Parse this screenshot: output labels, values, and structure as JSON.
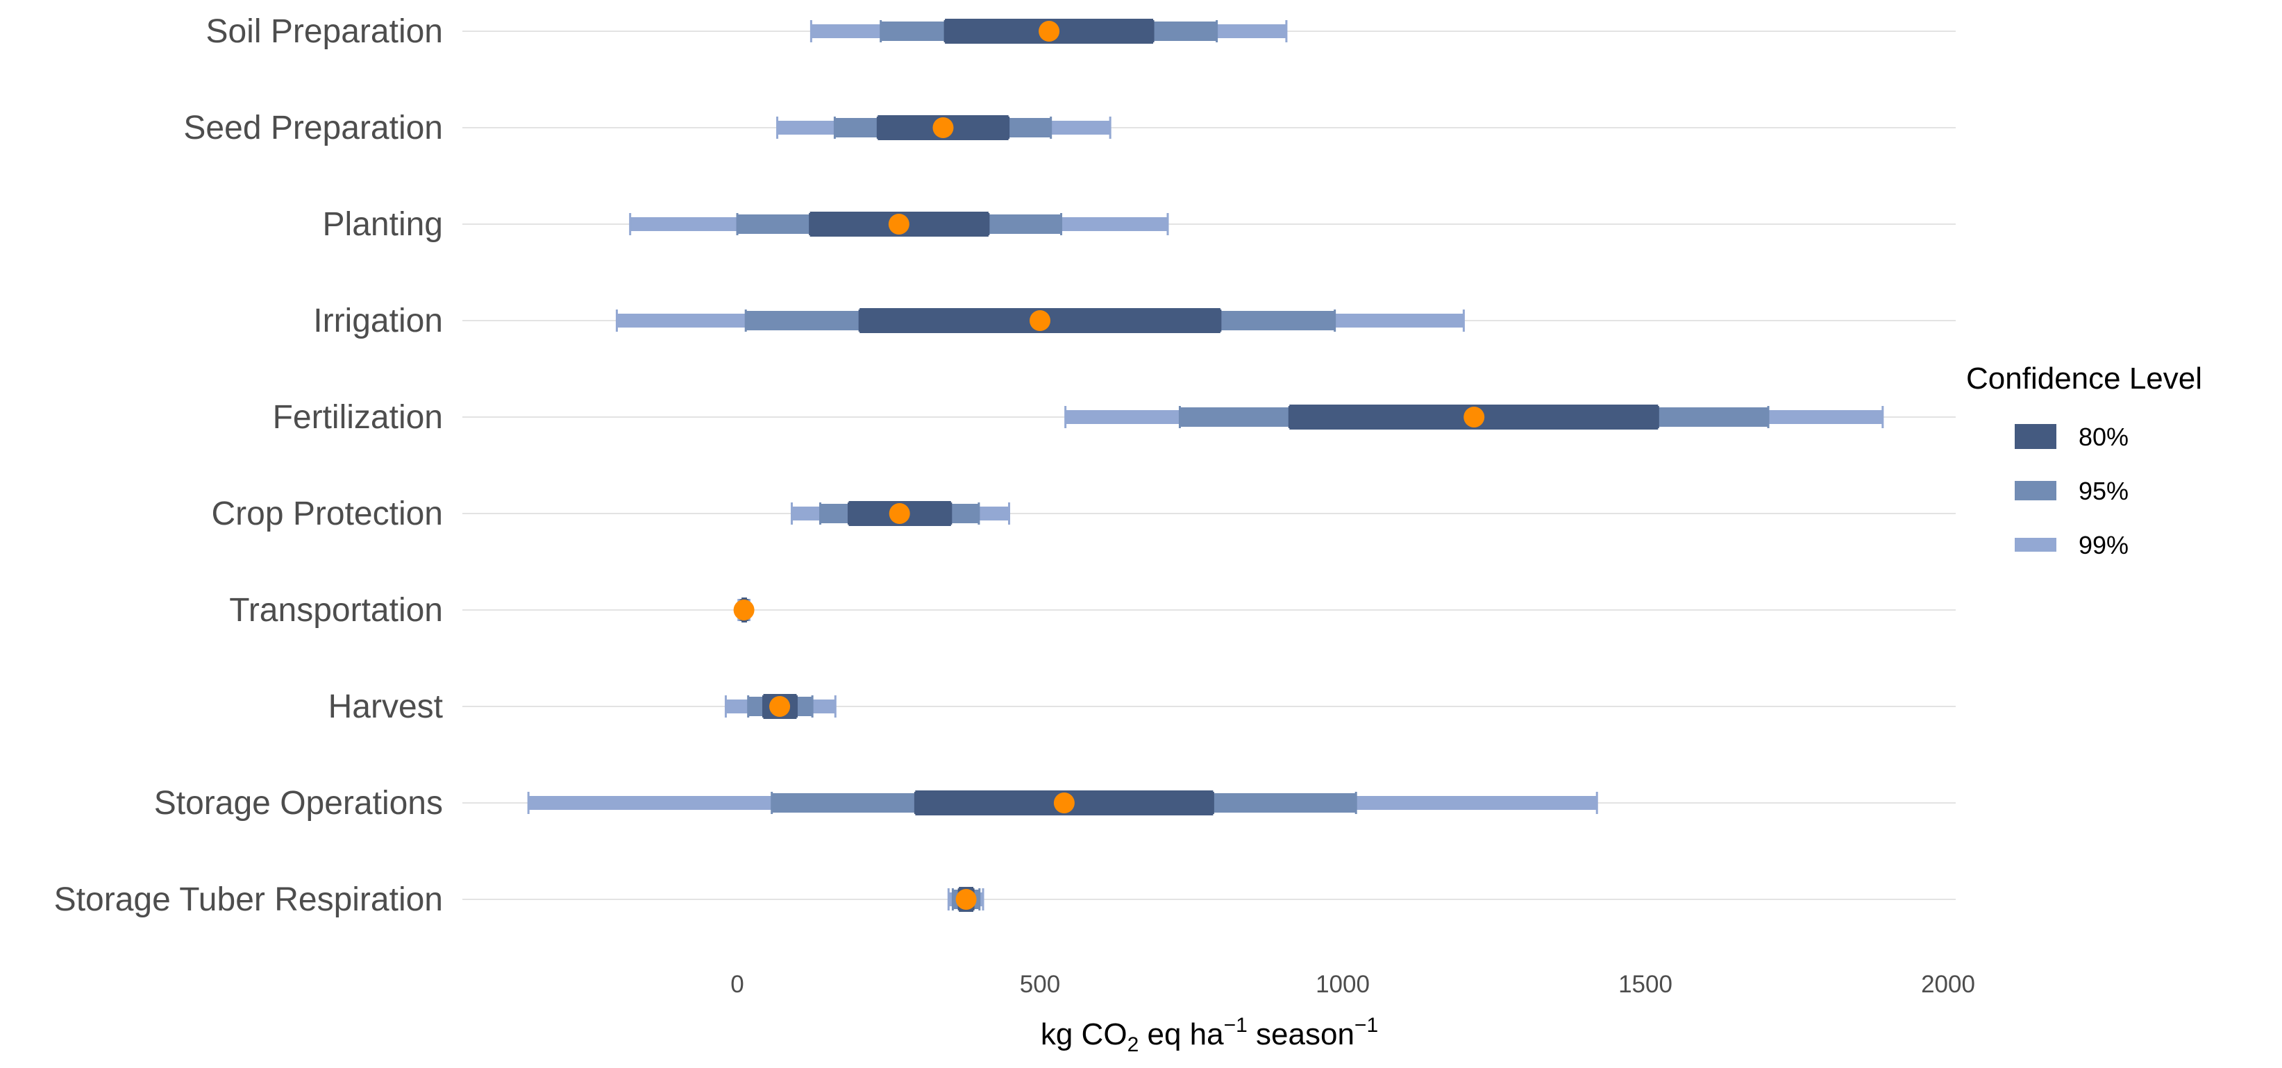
{
  "chart_data": {
    "type": "interval",
    "title": "",
    "xlabel_parts": {
      "prefix": "kg CO",
      "sub": "2",
      "middle": " eq ha",
      "sup1": "−1",
      "suffix": " season",
      "sup2": "−1"
    },
    "xlim": [
      -450,
      2000
    ],
    "xticks": [
      0,
      500,
      1000,
      1500,
      2000
    ],
    "grid": true,
    "legend": {
      "title": "Confidence Level",
      "position": "right",
      "entries": [
        "80%",
        "95%",
        "99%"
      ]
    },
    "colors": {
      "ci80": "#445a80",
      "ci95": "#728cb4",
      "ci99": "#93a8d3",
      "point": "#ff8c00",
      "grid": "#e3e3e3"
    },
    "categories": [
      "Soil Preparation",
      "Seed Preparation",
      "Planting",
      "Irrigation",
      "Fertilization",
      "Crop Protection",
      "Transportation",
      "Harvest",
      "Storage Operations",
      "Storage Tuber Respiration"
    ],
    "series": [
      {
        "category": "Soil Preparation",
        "mean": 515,
        "ci80": [
          343,
          687
        ],
        "ci95": [
          237,
          792
        ],
        "ci99": [
          122,
          907
        ]
      },
      {
        "category": "Seed Preparation",
        "mean": 340,
        "ci80": [
          232,
          448
        ],
        "ci95": [
          161,
          518
        ],
        "ci99": [
          66,
          616
        ]
      },
      {
        "category": "Planting",
        "mean": 267,
        "ci80": [
          120,
          415
        ],
        "ci95": [
          0,
          535
        ],
        "ci99": [
          -177,
          711
        ]
      },
      {
        "category": "Irrigation",
        "mean": 500,
        "ci80": [
          202,
          798
        ],
        "ci95": [
          14,
          987
        ],
        "ci99": [
          -199,
          1200
        ]
      },
      {
        "category": "Fertilization",
        "mean": 1217,
        "ci80": [
          912,
          1521
        ],
        "ci95": [
          731,
          1703
        ],
        "ci99": [
          542,
          1892
        ]
      },
      {
        "category": "Crop Protection",
        "mean": 268,
        "ci80": [
          184,
          353
        ],
        "ci95": [
          137,
          399
        ],
        "ci99": [
          90,
          449
        ]
      },
      {
        "category": "Transportation",
        "mean": 11,
        "ci80": [
          7,
          16
        ],
        "ci95": [
          5,
          18
        ],
        "ci99": [
          2,
          20
        ]
      },
      {
        "category": "Harvest",
        "mean": 70,
        "ci80": [
          43,
          98
        ],
        "ci95": [
          18,
          124
        ],
        "ci99": [
          -19,
          162
        ]
      },
      {
        "category": "Storage Operations",
        "mean": 540,
        "ci80": [
          294,
          786
        ],
        "ci95": [
          57,
          1022
        ],
        "ci99": [
          -345,
          1420
        ]
      },
      {
        "category": "Storage Tuber Respiration",
        "mean": 378,
        "ci80": [
          366,
          390
        ],
        "ci95": [
          356,
          400
        ],
        "ci99": [
          349,
          406
        ]
      }
    ]
  }
}
